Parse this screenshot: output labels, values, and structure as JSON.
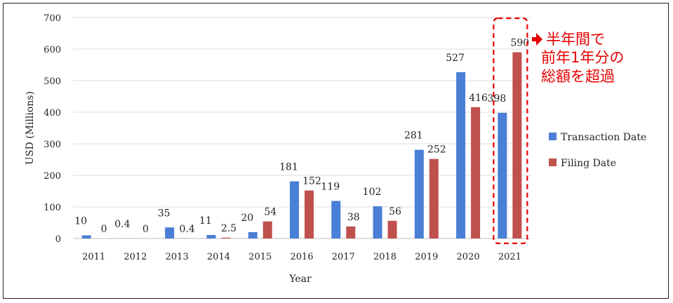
{
  "chart_data": {
    "type": "bar",
    "title": "",
    "xlabel": "Year",
    "ylabel": "USD (Millions)",
    "ylim": [
      0,
      700
    ],
    "yticks": [
      0,
      100,
      200,
      300,
      400,
      500,
      600,
      700
    ],
    "grid": "horizontal",
    "legend_position": "right",
    "categories": [
      "2011",
      "2012",
      "2013",
      "2014",
      "2015",
      "2016",
      "2017",
      "2018",
      "2019",
      "2020",
      "2021"
    ],
    "series": [
      {
        "name": "Transaction Date",
        "color": "#4a7fd6",
        "values": [
          10,
          0.4,
          35,
          11,
          20,
          181,
          119,
          102,
          281,
          527,
          398
        ],
        "labels": [
          "10",
          "0.4",
          "35",
          "11",
          "20",
          "181",
          "119",
          "102",
          "281",
          "527",
          "398"
        ]
      },
      {
        "name": "Filing Date",
        "color": "#c0504d",
        "values": [
          0,
          0,
          0.4,
          2.5,
          54,
          152,
          38,
          56,
          252,
          416,
          590
        ],
        "labels": [
          "0",
          "0",
          "0.4",
          "2.5",
          "54",
          "152",
          "38",
          "56",
          "252",
          "416",
          "590"
        ]
      }
    ],
    "annotation": {
      "lines": [
        "半年間で",
        "前年1年分の",
        "総額を超過"
      ],
      "color": "#e60000",
      "highlight_category": "2021"
    }
  }
}
